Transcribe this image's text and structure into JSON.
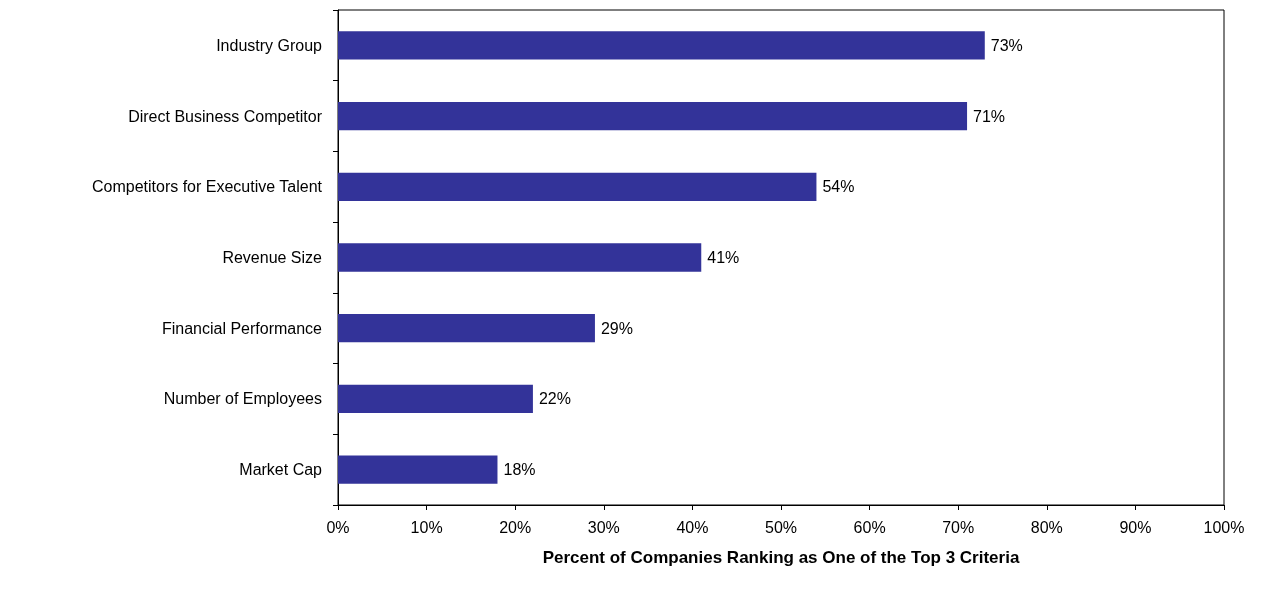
{
  "chart_data": {
    "type": "bar",
    "orientation": "horizontal",
    "xlabel": "Percent of Companies Ranking as One of the Top 3 Criteria",
    "categories": [
      "Industry Group",
      "Direct Business Competitor",
      "Competitors for Executive Talent",
      "Revenue Size",
      "Financial Performance",
      "Number of Employees",
      "Market Cap"
    ],
    "values": [
      73,
      71,
      54,
      41,
      29,
      22,
      18
    ],
    "value_labels": [
      "73%",
      "71%",
      "54%",
      "41%",
      "29%",
      "22%",
      "18%"
    ],
    "color": "#333399",
    "xlim": [
      0,
      100
    ],
    "xticks": [
      {
        "value": 0,
        "label": "0%"
      },
      {
        "value": 10,
        "label": "10%"
      },
      {
        "value": 20,
        "label": "20%"
      },
      {
        "value": 30,
        "label": "30%"
      },
      {
        "value": 40,
        "label": "40%"
      },
      {
        "value": 50,
        "label": "50%"
      },
      {
        "value": 60,
        "label": "60%"
      },
      {
        "value": 70,
        "label": "70%"
      },
      {
        "value": 80,
        "label": "80%"
      },
      {
        "value": 90,
        "label": "90%"
      },
      {
        "value": 100,
        "label": "100%"
      }
    ],
    "grid": false
  }
}
